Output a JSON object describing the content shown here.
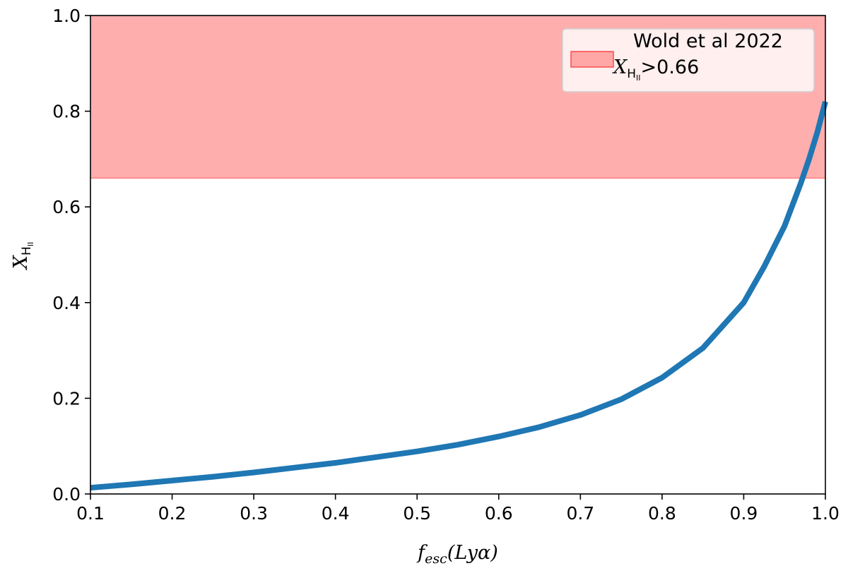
{
  "chart_data": {
    "type": "line",
    "xlabel": "f_esc(Lyα)",
    "ylabel": "X_HII",
    "xlim": [
      0.1,
      1.0
    ],
    "ylim": [
      0.0,
      1.0
    ],
    "x_ticks": [
      "0.1",
      "0.2",
      "0.3",
      "0.4",
      "0.5",
      "0.6",
      "0.7",
      "0.8",
      "0.9",
      "1.0"
    ],
    "y_ticks": [
      "0.0",
      "0.2",
      "0.4",
      "0.6",
      "0.8",
      "1.0"
    ],
    "grid": false,
    "legend_position": "top-right",
    "series": [
      {
        "type": "line",
        "color": "#1f77b4",
        "x": [
          0.1,
          0.15,
          0.2,
          0.25,
          0.3,
          0.35,
          0.4,
          0.45,
          0.5,
          0.55,
          0.6,
          0.65,
          0.7,
          0.75,
          0.8,
          0.85,
          0.9,
          0.925,
          0.95,
          0.97,
          0.98,
          0.99,
          1.0
        ],
        "y": [
          0.013,
          0.02,
          0.028,
          0.036,
          0.045,
          0.055,
          0.065,
          0.077,
          0.089,
          0.103,
          0.12,
          0.14,
          0.165,
          0.198,
          0.243,
          0.305,
          0.4,
          0.475,
          0.56,
          0.65,
          0.7,
          0.755,
          0.82
        ]
      }
    ],
    "bands": [
      {
        "name": "Wold et al 2022",
        "label_math": "X_HII>0.66",
        "ymin": 0.66,
        "ymax": 1.0,
        "color": "#ff6b6b"
      }
    ],
    "legend": {
      "line1": "Wold et al 2022",
      "math_base": "X",
      "math_sub": "H",
      "math_subsub": "II",
      "math_rest": ">0.66"
    },
    "axis_label_parts": {
      "x_f": "f",
      "x_sub": "esc",
      "x_rest": "(Lyα)",
      "y_base": "X",
      "y_sub": "H",
      "y_subsub": "II"
    }
  }
}
